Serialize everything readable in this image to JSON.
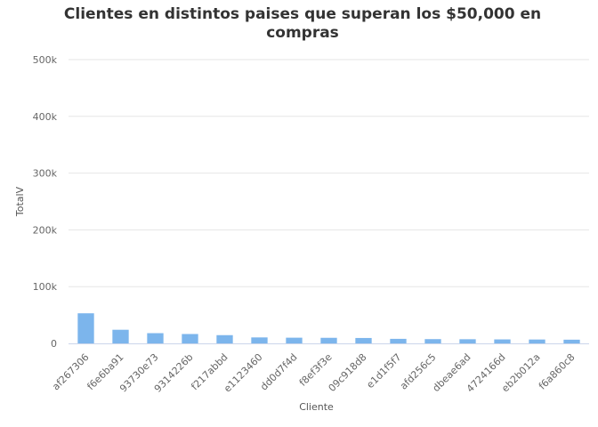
{
  "chart_data": {
    "type": "bar",
    "title": "Clientes en distintos paises que superan los $50,000 en compras",
    "xlabel": "Cliente",
    "ylabel": "TotalV",
    "ylim": [
      0,
      500000
    ],
    "yticks": [
      0,
      100000,
      200000,
      300000,
      400000,
      500000
    ],
    "ytick_labels": [
      "0",
      "100k",
      "200k",
      "300k",
      "400k",
      "500k"
    ],
    "grid": true,
    "categories": [
      "af267306",
      "f6e6ba91",
      "93730e73",
      "9314226b",
      "f217abbd",
      "e1123460",
      "dd0d7f4d",
      "f8ef3f3e",
      "09c918d8",
      "e1d1f5f7",
      "afd256c5",
      "dbeae6ad",
      "4724166d",
      "eb2b012a",
      "f6a860c8"
    ],
    "series": [
      {
        "values": [
          53000,
          24000,
          18000,
          16500,
          14500,
          10500,
          10000,
          9800,
          9500,
          8000,
          7500,
          7300,
          7000,
          6800,
          6500
        ]
      }
    ],
    "colors": {
      "bar": "#7cb5ec",
      "grid": "#e6e6e6",
      "axis": "#ccd6eb"
    }
  }
}
